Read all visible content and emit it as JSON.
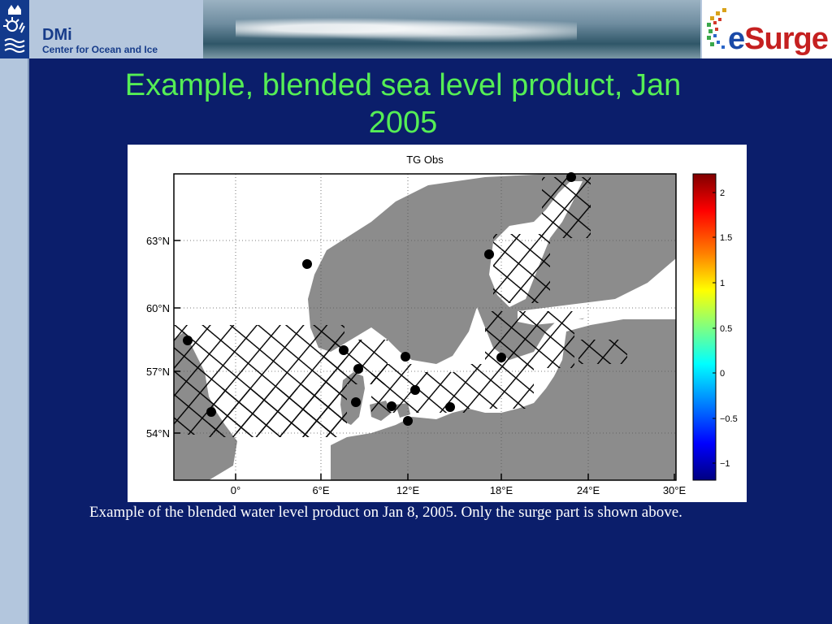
{
  "header": {
    "org_name": "DMi",
    "org_subtitle": "Center for Ocean and Ice",
    "partner_logo_text": "eSurge",
    "partner_logo_e": "e",
    "partner_logo_rest": "Surge"
  },
  "slide": {
    "title_line1": "Example, blended sea level product, Jan",
    "title_line2": "2005",
    "caption": "Example of the blended water level product on Jan 8, 2005. Only the surge part is shown above."
  },
  "figure": {
    "title": "TG Obs",
    "lat_ticks": [
      "63°N",
      "60°N",
      "57°N",
      "54°N"
    ],
    "lon_ticks": [
      "0°",
      "6°E",
      "12°E",
      "18°E",
      "24°E",
      "30°E"
    ],
    "colorbar_ticks": [
      "2",
      "1.5",
      "1",
      "0.5",
      "0",
      "−0.5",
      "−1"
    ],
    "colorbar_colors": [
      "#800000",
      "#ff0000",
      "#ff8000",
      "#ffff00",
      "#80ff80",
      "#00ffff",
      "#0080ff",
      "#0000ff",
      "#000080"
    ],
    "land_color": "#8c8c8c",
    "sea_color": "#ffffff",
    "gauge_color": "#000000"
  }
}
